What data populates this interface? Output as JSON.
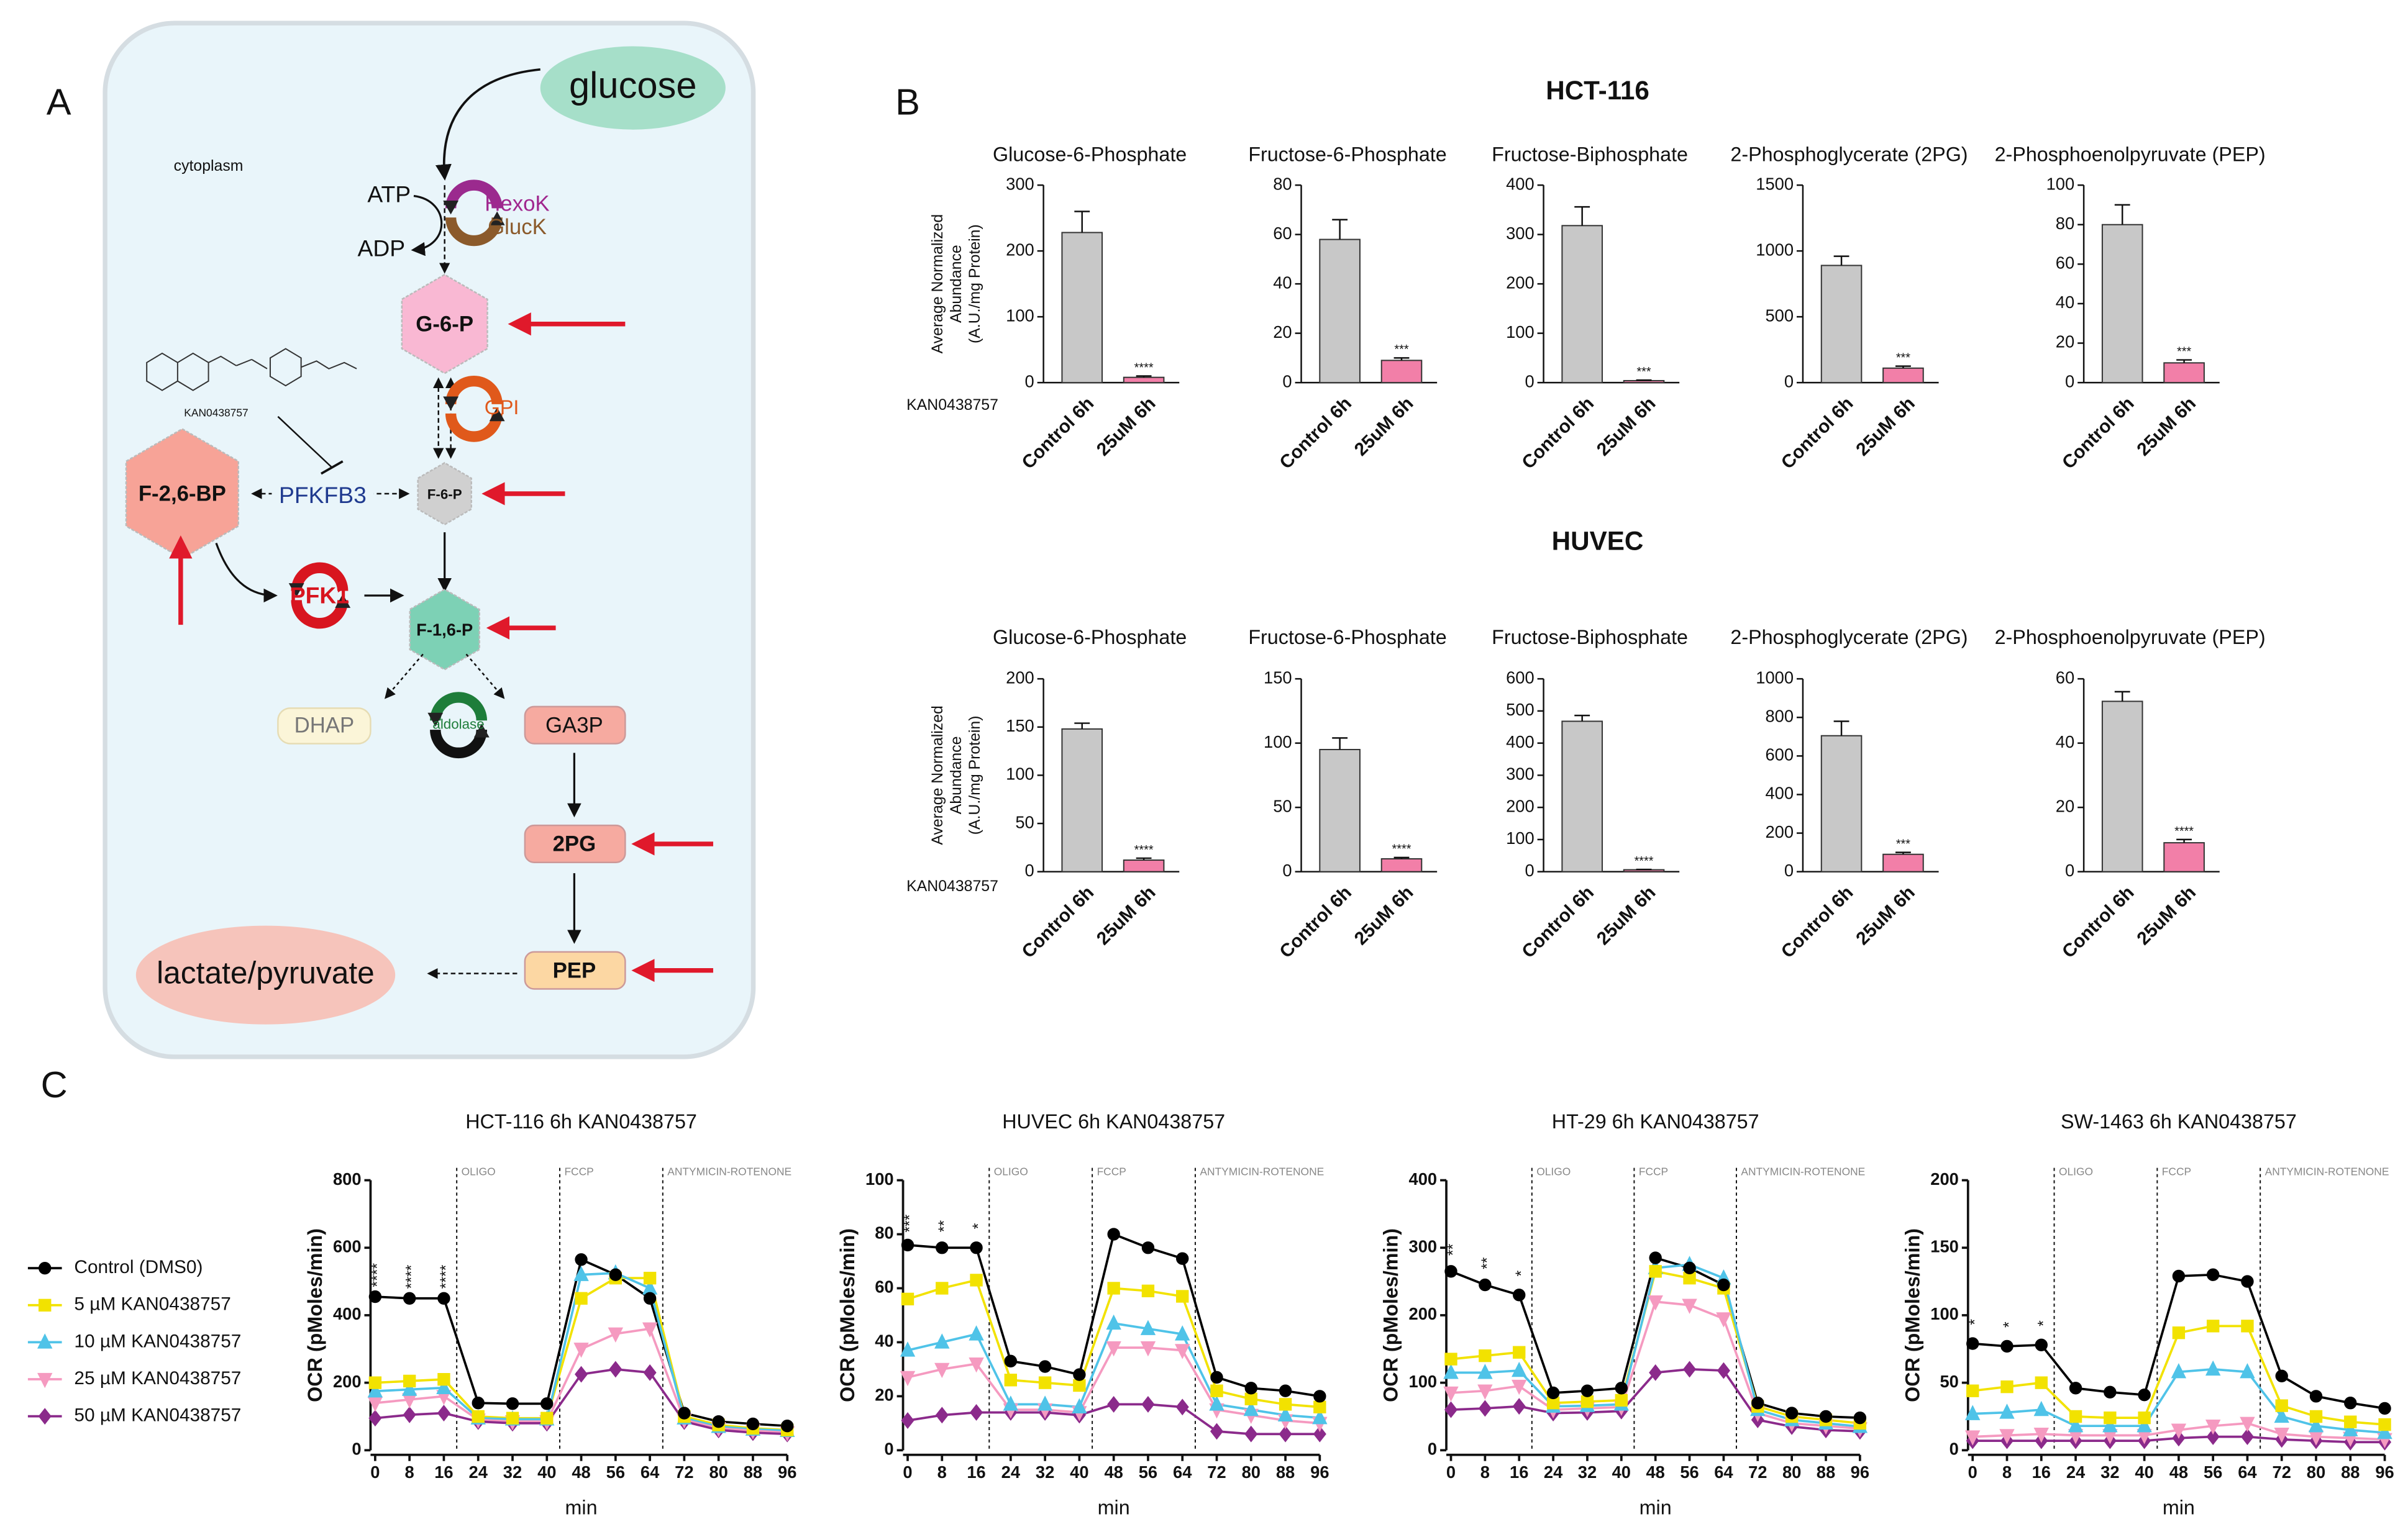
{
  "panels": [
    "A",
    "B",
    "C"
  ],
  "diagram": {
    "glucose": "glucose",
    "cytoplasm": "cytoplasm",
    "atp": "ATP",
    "adp": "ADP",
    "hexok": "HexoK",
    "gluck": "GlucK",
    "g6p": "G-6-P",
    "gpi": "GPI",
    "drug": "KAN0438757",
    "f26bp": "F-2,6-BP",
    "pfkfb3": "PFKFB3",
    "f6p": "F-6-P",
    "pfk1": "PFK1",
    "f16p": "F-1,6-P",
    "dhap": "DHAP",
    "aldolase": "aldolase",
    "ga3p": "GA3P",
    "pg2": "2PG",
    "pep": "PEP",
    "lactate": "lactate/pyruvate"
  },
  "panel_b_rows": [
    {
      "title": "HCT-116",
      "ylabel": [
        "Average Normalized",
        "Abundance",
        "(A.U./mg Protein)"
      ],
      "xlabel": "KAN0438757"
    },
    {
      "title": "HUVEC",
      "ylabel": [
        "Average Normalized",
        "Abundance",
        "(A.U./mg Protein)"
      ],
      "xlabel": "KAN0438757"
    }
  ],
  "panel_c_legend": [
    {
      "name": "Control  (DMS0)",
      "color": "#000000",
      "marker": "circle"
    },
    {
      "name": "5 µM KAN0438757",
      "color": "#f2e200",
      "marker": "square"
    },
    {
      "name": "10 µM KAN0438757",
      "color": "#4fc3e8",
      "marker": "triangle-up"
    },
    {
      "name": "25 µM KAN0438757",
      "color": "#f59ac0",
      "marker": "triangle-down"
    },
    {
      "name": "50 µM KAN0438757",
      "color": "#8b2a8b",
      "marker": "diamond"
    }
  ],
  "chart_data": [
    {
      "type": "bar",
      "title": "Glucose-6-Phosphate",
      "categories": [
        "Control 6h",
        "25uM 6h"
      ],
      "values": [
        228,
        8
      ],
      "errors": [
        32,
        2
      ],
      "colors": [
        "#c8c8c8",
        "#f27fa8"
      ],
      "annotation": "****",
      "ylim": [
        0,
        300
      ],
      "yticks": [
        0,
        100,
        200,
        300
      ]
    },
    {
      "type": "bar",
      "title": "Fructose-6-Phosphate",
      "categories": [
        "Control 6h",
        "25uM 6h"
      ],
      "values": [
        58,
        9
      ],
      "errors": [
        8,
        1
      ],
      "colors": [
        "#c8c8c8",
        "#f27fa8"
      ],
      "annotation": "***",
      "ylim": [
        0,
        80
      ],
      "yticks": [
        0,
        20,
        40,
        60,
        80
      ]
    },
    {
      "type": "bar",
      "title": "Fructose-Biphosphate",
      "categories": [
        "Control 6h",
        "25uM 6h"
      ],
      "values": [
        318,
        4
      ],
      "errors": [
        38,
        1
      ],
      "colors": [
        "#c8c8c8",
        "#f27fa8"
      ],
      "annotation": "***",
      "ylim": [
        0,
        400
      ],
      "yticks": [
        0,
        100,
        200,
        300,
        400
      ]
    },
    {
      "type": "bar",
      "title": "2-Phosphoglycerate (2PG)",
      "categories": [
        "Control 6h",
        "25uM 6h"
      ],
      "values": [
        890,
        110
      ],
      "errors": [
        70,
        15
      ],
      "colors": [
        "#c8c8c8",
        "#f27fa8"
      ],
      "annotation": "***",
      "ylim": [
        0,
        1500
      ],
      "yticks": [
        0,
        500,
        1000,
        1500
      ]
    },
    {
      "type": "bar",
      "title": "2-Phosphoenolpyruvate (PEP)",
      "categories": [
        "Control 6h",
        "25uM 6h"
      ],
      "values": [
        80,
        10
      ],
      "errors": [
        10,
        1.5
      ],
      "colors": [
        "#c8c8c8",
        "#f27fa8"
      ],
      "annotation": "***",
      "ylim": [
        0,
        100
      ],
      "yticks": [
        0,
        20,
        40,
        60,
        80,
        100
      ]
    },
    {
      "type": "bar",
      "title": "Glucose-6-Phosphate",
      "categories": [
        "Control 6h",
        "25uM 6h"
      ],
      "values": [
        148,
        12
      ],
      "errors": [
        6,
        2
      ],
      "colors": [
        "#c8c8c8",
        "#f27fa8"
      ],
      "annotation": "****",
      "ylim": [
        0,
        200
      ],
      "yticks": [
        0,
        50,
        100,
        150,
        200
      ]
    },
    {
      "type": "bar",
      "title": "Fructose-6-Phosphate",
      "categories": [
        "Control 6h",
        "25uM 6h"
      ],
      "values": [
        95,
        10
      ],
      "errors": [
        9,
        1
      ],
      "colors": [
        "#c8c8c8",
        "#f27fa8"
      ],
      "annotation": "****",
      "ylim": [
        0,
        150
      ],
      "yticks": [
        0,
        50,
        100,
        150
      ]
    },
    {
      "type": "bar",
      "title": "Fructose-Biphosphate",
      "categories": [
        "Control 6h",
        "25uM 6h"
      ],
      "values": [
        468,
        6
      ],
      "errors": [
        18,
        1
      ],
      "colors": [
        "#c8c8c8",
        "#f27fa8"
      ],
      "annotation": "****",
      "ylim": [
        0,
        600
      ],
      "yticks": [
        0,
        100,
        200,
        300,
        400,
        500,
        600
      ]
    },
    {
      "type": "bar",
      "title": "2-Phosphoglycerate (2PG)",
      "categories": [
        "Control 6h",
        "25uM 6h"
      ],
      "values": [
        705,
        90
      ],
      "errors": [
        75,
        10
      ],
      "colors": [
        "#c8c8c8",
        "#f27fa8"
      ],
      "annotation": "***",
      "ylim": [
        0,
        1000
      ],
      "yticks": [
        0,
        200,
        400,
        600,
        800,
        1000
      ]
    },
    {
      "type": "bar",
      "title": "2-Phosphoenolpyruvate (PEP)",
      "categories": [
        "Control 6h",
        "25uM 6h"
      ],
      "values": [
        53,
        9
      ],
      "errors": [
        3,
        1
      ],
      "colors": [
        "#c8c8c8",
        "#f27fa8"
      ],
      "annotation": "****",
      "ylim": [
        0,
        60
      ],
      "yticks": [
        0,
        20,
        40,
        60
      ]
    },
    {
      "type": "line",
      "title": "HCT-116 6h KAN0438757",
      "ylabel": "OCR  (pMoles/min)",
      "xlabel": "min",
      "x": [
        0,
        8,
        16,
        24,
        32,
        40,
        48,
        56,
        64,
        72,
        80,
        88,
        96
      ],
      "xlim": [
        0,
        96
      ],
      "xticks": [
        0,
        8,
        16,
        24,
        32,
        40,
        48,
        56,
        64,
        72,
        80,
        88,
        96
      ],
      "ylim": [
        0,
        800
      ],
      "yticks": [
        0,
        200,
        400,
        600,
        800
      ],
      "events": [
        {
          "x": 19,
          "label": "OLIGO"
        },
        {
          "x": 43,
          "label": "FCCP"
        },
        {
          "x": 67,
          "label": "ANTYMICIN-ROTENONE"
        }
      ],
      "annotations": [
        {
          "x": 0,
          "text": "****"
        },
        {
          "x": 8,
          "text": "****"
        },
        {
          "x": 16,
          "text": "****"
        }
      ],
      "series": [
        {
          "values": [
            455,
            450,
            450,
            140,
            138,
            138,
            565,
            520,
            450,
            110,
            85,
            78,
            72
          ]
        },
        {
          "values": [
            200,
            205,
            210,
            100,
            95,
            95,
            450,
            510,
            510,
            100,
            75,
            65,
            60
          ]
        },
        {
          "values": [
            175,
            180,
            185,
            95,
            92,
            92,
            520,
            525,
            480,
            95,
            70,
            62,
            58
          ]
        },
        {
          "values": [
            140,
            150,
            160,
            90,
            85,
            85,
            300,
            345,
            360,
            90,
            65,
            58,
            52
          ]
        },
        {
          "values": [
            95,
            105,
            110,
            85,
            80,
            80,
            225,
            240,
            230,
            85,
            60,
            52,
            48
          ]
        }
      ]
    },
    {
      "type": "line",
      "title": "HUVEC 6h KAN0438757",
      "ylabel": "OCR  (pMoles/min)",
      "xlabel": "min",
      "x": [
        0,
        8,
        16,
        24,
        32,
        40,
        48,
        56,
        64,
        72,
        80,
        88,
        96
      ],
      "xlim": [
        0,
        96
      ],
      "xticks": [
        0,
        8,
        16,
        24,
        32,
        40,
        48,
        56,
        64,
        72,
        80,
        88,
        96
      ],
      "ylim": [
        0,
        100
      ],
      "yticks": [
        0,
        20,
        40,
        60,
        80,
        100
      ],
      "events": [
        {
          "x": 19,
          "label": "OLIGO"
        },
        {
          "x": 43,
          "label": "FCCP"
        },
        {
          "x": 67,
          "label": "ANTYMICIN-ROTENONE"
        }
      ],
      "annotations": [
        {
          "x": 0,
          "text": "***"
        },
        {
          "x": 8,
          "text": "**"
        },
        {
          "x": 16,
          "text": "*"
        }
      ],
      "series": [
        {
          "values": [
            76,
            75,
            75,
            33,
            31,
            28,
            80,
            75,
            71,
            27,
            23,
            22,
            20
          ]
        },
        {
          "values": [
            56,
            60,
            63,
            26,
            25,
            24,
            60,
            59,
            57,
            22,
            19,
            17,
            16
          ]
        },
        {
          "values": [
            37,
            40,
            43,
            17,
            17,
            16,
            47,
            45,
            43,
            17,
            15,
            13,
            12
          ]
        },
        {
          "values": [
            27,
            30,
            32,
            15,
            15,
            14,
            38,
            38,
            37,
            15,
            13,
            11,
            10
          ]
        },
        {
          "values": [
            11,
            13,
            14,
            14,
            14,
            13,
            17,
            17,
            16,
            7,
            6,
            6,
            6
          ]
        }
      ]
    },
    {
      "type": "line",
      "title": "HT-29 6h KAN0438757",
      "ylabel": "OCR  (pMoles/min)",
      "xlabel": "min",
      "x": [
        0,
        8,
        16,
        24,
        32,
        40,
        48,
        56,
        64,
        72,
        80,
        88,
        96
      ],
      "xlim": [
        0,
        96
      ],
      "xticks": [
        0,
        8,
        16,
        24,
        32,
        40,
        48,
        56,
        64,
        72,
        80,
        88,
        96
      ],
      "ylim": [
        0,
        400
      ],
      "yticks": [
        0,
        100,
        200,
        300,
        400
      ],
      "events": [
        {
          "x": 19,
          "label": "OLIGO"
        },
        {
          "x": 43,
          "label": "FCCP"
        },
        {
          "x": 67,
          "label": "ANTYMICIN-ROTENONE"
        }
      ],
      "annotations": [
        {
          "x": 0,
          "text": "**"
        },
        {
          "x": 8,
          "text": "**"
        },
        {
          "x": 16,
          "text": "*"
        }
      ],
      "series": [
        {
          "values": [
            265,
            245,
            230,
            85,
            88,
            92,
            285,
            270,
            245,
            70,
            55,
            50,
            48
          ]
        },
        {
          "values": [
            135,
            140,
            145,
            70,
            72,
            74,
            265,
            255,
            240,
            65,
            50,
            45,
            40
          ]
        },
        {
          "values": [
            115,
            115,
            118,
            65,
            66,
            68,
            270,
            275,
            255,
            60,
            45,
            40,
            35
          ]
        },
        {
          "values": [
            85,
            88,
            95,
            60,
            62,
            64,
            220,
            215,
            195,
            55,
            40,
            36,
            32
          ]
        },
        {
          "values": [
            60,
            62,
            65,
            55,
            56,
            58,
            115,
            120,
            118,
            45,
            35,
            30,
            28
          ]
        }
      ]
    },
    {
      "type": "line",
      "title": "SW-1463 6h KAN0438757",
      "ylabel": "OCR  (pMoles/min)",
      "xlabel": "min",
      "x": [
        0,
        8,
        16,
        24,
        32,
        40,
        48,
        56,
        64,
        72,
        80,
        88,
        96
      ],
      "xlim": [
        0,
        96
      ],
      "xticks": [
        0,
        8,
        16,
        24,
        32,
        40,
        48,
        56,
        64,
        72,
        80,
        88,
        96
      ],
      "ylim": [
        0,
        200
      ],
      "yticks": [
        0,
        50,
        100,
        150,
        200
      ],
      "events": [
        {
          "x": 19,
          "label": "OLIGO"
        },
        {
          "x": 43,
          "label": "FCCP"
        },
        {
          "x": 67,
          "label": "ANTYMICIN-ROTENONE"
        }
      ],
      "annotations": [
        {
          "x": 0,
          "text": "*"
        },
        {
          "x": 8,
          "text": "*"
        },
        {
          "x": 16,
          "text": "*"
        }
      ],
      "series": [
        {
          "values": [
            79,
            77,
            78,
            46,
            43,
            41,
            129,
            130,
            125,
            55,
            40,
            35,
            31
          ]
        },
        {
          "values": [
            44,
            47,
            50,
            25,
            24,
            24,
            87,
            92,
            92,
            33,
            25,
            21,
            19
          ]
        },
        {
          "values": [
            27,
            28,
            30,
            18,
            18,
            18,
            58,
            60,
            58,
            25,
            18,
            15,
            13
          ]
        },
        {
          "values": [
            10,
            11,
            12,
            11,
            11,
            11,
            15,
            18,
            20,
            12,
            10,
            9,
            8
          ]
        },
        {
          "values": [
            7,
            7,
            7,
            7,
            7,
            7,
            9,
            10,
            10,
            8,
            7,
            6,
            6
          ]
        }
      ]
    }
  ]
}
